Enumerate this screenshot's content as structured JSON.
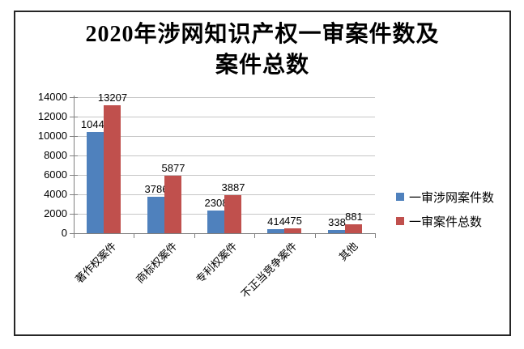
{
  "chart": {
    "title_line1": "2020年涉网知识产权一审案件数及",
    "title_line2": "案件总数"
  },
  "chart_data": {
    "type": "bar",
    "title": "2020年涉网知识产权一审案件数及案件总数",
    "categories": [
      "著作权案件",
      "商标权案件",
      "专利权案件",
      "不正当竞争案件",
      "其他"
    ],
    "series": [
      {
        "name": "一审涉网案件数",
        "color": "#4F81BD",
        "values": [
          10443,
          3786,
          2308,
          414,
          338
        ]
      },
      {
        "name": "一审案件总数",
        "color": "#C0504D",
        "values": [
          13207,
          5877,
          3887,
          475,
          881
        ]
      }
    ],
    "xlabel": "",
    "ylabel": "",
    "ylim": [
      0,
      14000
    ],
    "yticks": [
      0,
      2000,
      4000,
      6000,
      8000,
      10000,
      12000,
      14000
    ],
    "grid": true,
    "data_labels": true,
    "legend_position": "right",
    "colors": {
      "gridline": "#C6C6C6",
      "axis": "#808080",
      "text": "#000000",
      "border": "#262626"
    }
  }
}
